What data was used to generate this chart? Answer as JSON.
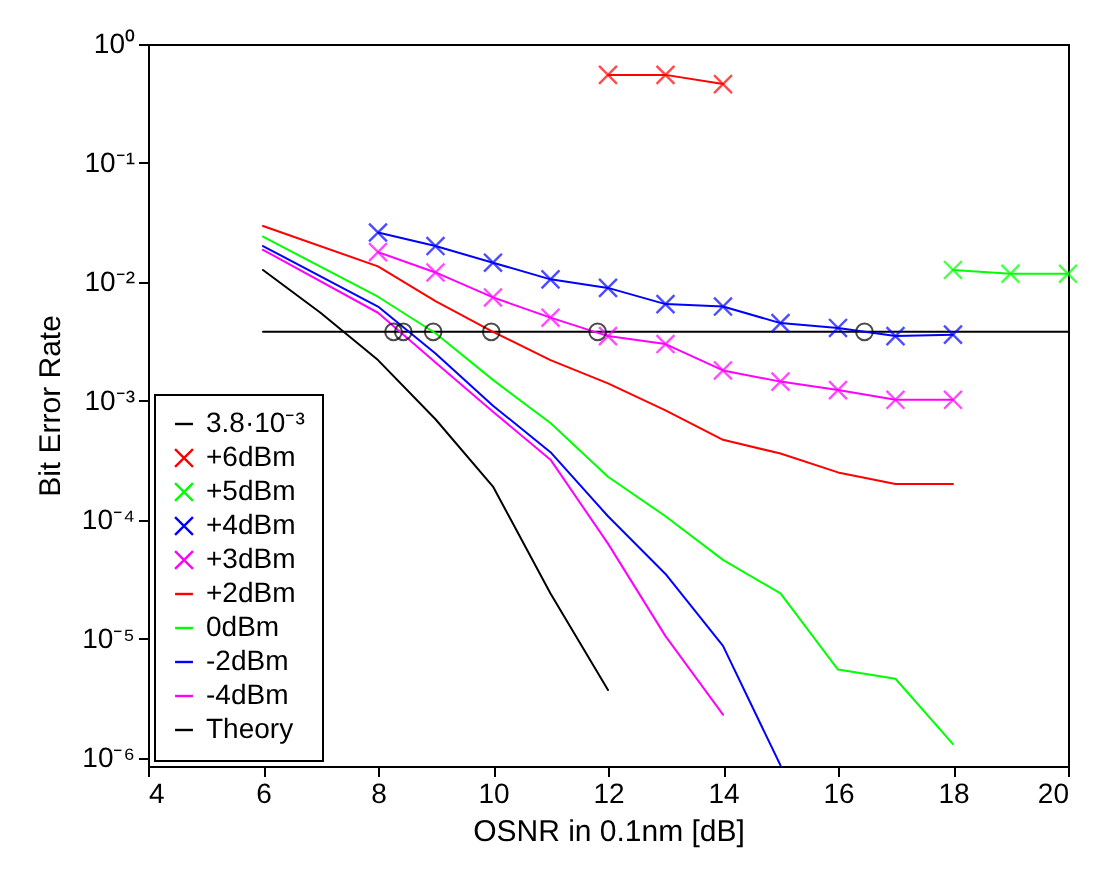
{
  "chart_data": {
    "type": "line",
    "xlabel": "OSNR in 0.1nm [dB]",
    "ylabel": "Bit Error Rate",
    "log": "y",
    "grid": false,
    "legend": "bottom left",
    "xlim": [
      4,
      20
    ],
    "xticks": [
      4,
      6,
      8,
      10,
      12,
      14,
      16,
      18,
      20
    ],
    "ylim": [
      8.5e-07,
      1
    ],
    "yticks": [
      {
        "value": 1e-06,
        "label": "10⁻⁶"
      },
      {
        "value": 1e-05,
        "label": "10⁻⁵"
      },
      {
        "value": 0.0001,
        "label": "10⁻⁴"
      },
      {
        "value": 0.001,
        "label": "10⁻³"
      },
      {
        "value": 0.01,
        "label": "10⁻²"
      },
      {
        "value": 0.1,
        "label": "10⁻¹"
      },
      {
        "value": 1,
        "label": "10⁰"
      }
    ],
    "series": [
      {
        "name": "3.8·10⁻³",
        "color": "#000000",
        "marker": "none",
        "x": [
          6,
          20
        ],
        "values": [
          0.0038,
          0.0038
        ]
      },
      {
        "name": "+6dBm",
        "color": "#ff0000",
        "marker": "cross",
        "x": [
          12,
          13,
          14
        ],
        "values": [
          0.55,
          0.55,
          0.46
        ]
      },
      {
        "name": "+5dBm",
        "color": "#00ff00",
        "marker": "cross",
        "x": [
          18,
          19,
          20
        ],
        "values": [
          0.0126,
          0.0117,
          0.0117
        ]
      },
      {
        "name": "+4dBm",
        "color": "#0000ff",
        "marker": "cross",
        "x": [
          8,
          9,
          10,
          11,
          12,
          13,
          14,
          15,
          16,
          17,
          18
        ],
        "values": [
          0.026,
          0.02,
          0.0145,
          0.0105,
          0.0089,
          0.0065,
          0.0062,
          0.0045,
          0.0041,
          0.0035,
          0.0036
        ]
      },
      {
        "name": "+3dBm",
        "color": "#ff00ff",
        "marker": "cross",
        "x": [
          8,
          9,
          10,
          11,
          12,
          13,
          14,
          15,
          16,
          17,
          18
        ],
        "values": [
          0.0178,
          0.012,
          0.0074,
          0.005,
          0.0035,
          0.003,
          0.0018,
          0.00145,
          0.00123,
          0.00102,
          0.00102
        ]
      },
      {
        "name": "+2dBm",
        "color": "#ff0000",
        "marker": "none",
        "x": [
          6,
          8,
          9,
          10,
          11,
          12,
          13,
          14,
          15,
          16,
          17,
          18
        ],
        "values": [
          0.0295,
          0.0135,
          0.0069,
          0.0038,
          0.0022,
          0.0014,
          0.00083,
          0.00047,
          0.00036,
          0.00025,
          0.0002,
          0.0002
        ]
      },
      {
        "name": "0dBm",
        "color": "#00ff00",
        "marker": "none",
        "x": [
          6,
          8,
          9,
          10,
          11,
          12,
          13,
          14,
          15,
          16,
          17,
          18
        ],
        "values": [
          0.024,
          0.0075,
          0.0037,
          0.0015,
          0.00065,
          0.00023,
          0.000107,
          4.6e-05,
          2.4e-05,
          5.5e-06,
          4.6e-06,
          1.3e-06
        ]
      },
      {
        "name": "-2dBm",
        "color": "#0000ff",
        "marker": "none",
        "x": [
          6,
          8,
          9,
          10,
          11,
          12,
          13,
          14,
          15
        ],
        "values": [
          0.02,
          0.0062,
          0.0025,
          0.00091,
          0.00037,
          0.000107,
          3.5e-05,
          8.7e-06,
          8.6e-07
        ]
      },
      {
        "name": "-4dBm",
        "color": "#ff00ff",
        "marker": "none",
        "x": [
          6,
          8,
          9,
          10,
          11,
          12,
          13,
          14
        ],
        "values": [
          0.0186,
          0.0055,
          0.0021,
          0.00081,
          0.00032,
          6.3e-05,
          1.05e-05,
          2.3e-06
        ]
      },
      {
        "name": "Theory",
        "color": "#000000",
        "marker": "none",
        "x": [
          6,
          7,
          8,
          9,
          10,
          11,
          12
        ],
        "values": [
          0.0126,
          0.0055,
          0.0022,
          0.0007,
          0.00019,
          2.4e-05,
          3.7e-06
        ]
      },
      {
        "type": "scatter",
        "color": "#000000",
        "marker": "circle",
        "x": [
          8.27,
          8.44,
          8.96,
          9.97,
          11.82,
          16.46
        ],
        "values": [
          0.0038,
          0.0038,
          0.0038,
          0.0038,
          0.0038,
          0.0038
        ]
      }
    ]
  }
}
